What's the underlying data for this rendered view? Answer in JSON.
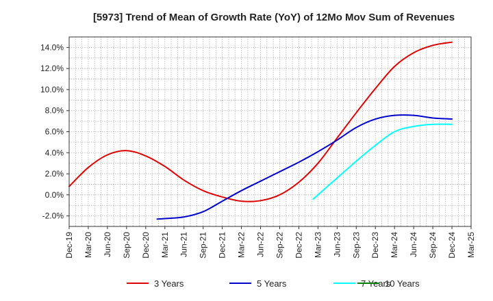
{
  "chart_data": {
    "type": "line",
    "title": "[5973]  Trend of Mean of Growth Rate (YoY) of 12Mo Mov Sum of Revenues",
    "xlabel": "",
    "ylabel": "",
    "ylim": [
      -3.0,
      15.0
    ],
    "y_ticks": [
      -2.0,
      0.0,
      2.0,
      4.0,
      6.0,
      8.0,
      10.0,
      12.0,
      14.0
    ],
    "y_tick_labels": [
      "-2.0%",
      "0.0%",
      "2.0%",
      "4.0%",
      "6.0%",
      "8.0%",
      "10.0%",
      "12.0%",
      "14.0%"
    ],
    "x_tick_labels": [
      "Dec-19",
      "Mar-20",
      "Jun-20",
      "Sep-20",
      "Dec-20",
      "Mar-21",
      "Jun-21",
      "Sep-21",
      "Dec-21",
      "Mar-22",
      "Jun-22",
      "Sep-22",
      "Dec-22",
      "Mar-23",
      "Jun-23",
      "Sep-23",
      "Dec-23",
      "Mar-24",
      "Jun-24",
      "Sep-24",
      "Dec-24",
      "Mar-25"
    ],
    "grid": true,
    "legend_position": "bottom",
    "series": [
      {
        "name": "3 Years",
        "color": "#dd0000",
        "points": [
          [
            0,
            0.8
          ],
          [
            1,
            2.6
          ],
          [
            2,
            3.8
          ],
          [
            3,
            4.2
          ],
          [
            4,
            3.7
          ],
          [
            5,
            2.7
          ],
          [
            6,
            1.4
          ],
          [
            7,
            0.4
          ],
          [
            8,
            -0.2
          ],
          [
            9,
            -0.6
          ],
          [
            10,
            -0.55
          ],
          [
            11,
            0.0
          ],
          [
            12,
            1.2
          ],
          [
            13,
            3.0
          ],
          [
            14,
            5.4
          ],
          [
            15,
            7.8
          ],
          [
            16,
            10.1
          ],
          [
            17,
            12.2
          ],
          [
            18,
            13.5
          ],
          [
            19,
            14.2
          ],
          [
            20,
            14.5
          ]
        ]
      },
      {
        "name": "5 Years",
        "color": "#0000cc",
        "points": [
          [
            4.6,
            -2.3
          ],
          [
            5,
            -2.25
          ],
          [
            6,
            -2.1
          ],
          [
            7,
            -1.6
          ],
          [
            8,
            -0.6
          ],
          [
            9,
            0.4
          ],
          [
            10,
            1.3
          ],
          [
            11,
            2.2
          ],
          [
            12,
            3.1
          ],
          [
            13,
            4.1
          ],
          [
            14,
            5.2
          ],
          [
            15,
            6.4
          ],
          [
            16,
            7.2
          ],
          [
            17,
            7.55
          ],
          [
            18,
            7.55
          ],
          [
            19,
            7.3
          ],
          [
            20,
            7.2
          ]
        ]
      },
      {
        "name": "7 Years",
        "color": "#00ffff",
        "points": [
          [
            12.75,
            -0.4
          ],
          [
            13,
            0.0
          ],
          [
            14,
            1.6
          ],
          [
            15,
            3.2
          ],
          [
            16,
            4.7
          ],
          [
            17,
            6.0
          ],
          [
            18,
            6.5
          ],
          [
            19,
            6.7
          ],
          [
            20,
            6.7
          ]
        ]
      },
      {
        "name": "10 Years",
        "color": "#008000",
        "points": []
      }
    ]
  }
}
